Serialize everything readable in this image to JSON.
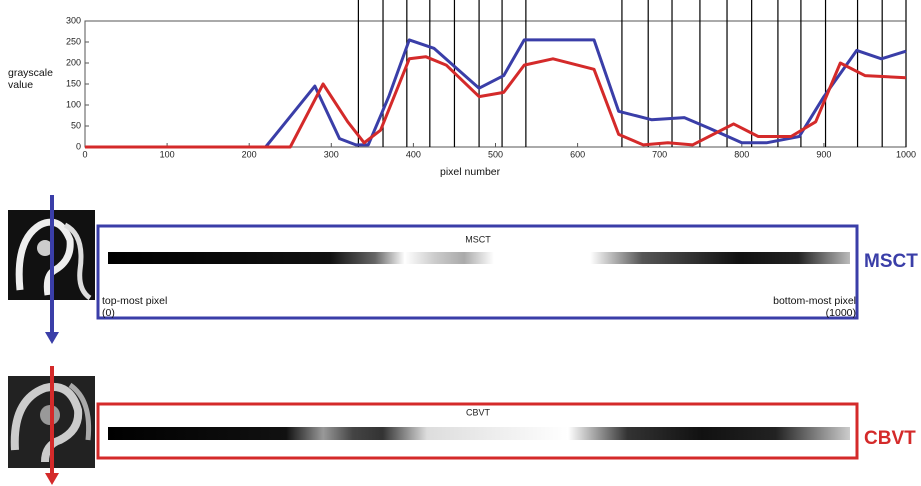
{
  "chart_data": {
    "type": "line",
    "xlabel": "pixel number",
    "ylabel": "grayscale value",
    "xlim": [
      0,
      1000
    ],
    "ylim": [
      0,
      300
    ],
    "xticks": [
      0,
      100,
      200,
      300,
      400,
      500,
      600,
      700,
      800,
      900,
      1000
    ],
    "yticks": [
      0,
      50,
      100,
      150,
      200,
      250,
      300
    ],
    "vertical_lines": [
      333,
      363,
      392,
      420,
      450,
      480,
      508,
      537,
      654,
      686,
      715,
      749,
      782,
      812,
      844,
      872,
      902,
      941,
      971,
      1000
    ],
    "series": [
      {
        "name": "MSCT",
        "color": "#3a3ea8",
        "x": [
          0,
          220,
          280,
          310,
          330,
          345,
          370,
          395,
          425,
          480,
          510,
          535,
          620,
          650,
          690,
          730,
          760,
          800,
          830,
          870,
          900,
          940,
          970,
          1000
        ],
        "values": [
          0,
          0,
          145,
          20,
          5,
          5,
          120,
          255,
          235,
          140,
          170,
          255,
          255,
          85,
          65,
          70,
          45,
          10,
          10,
          25,
          120,
          230,
          210,
          228
        ]
      },
      {
        "name": "CBVT",
        "color": "#d42a2a",
        "x": [
          0,
          250,
          290,
          320,
          340,
          360,
          395,
          415,
          440,
          480,
          510,
          535,
          570,
          620,
          650,
          680,
          710,
          740,
          790,
          820,
          860,
          890,
          920,
          950,
          1000
        ],
        "values": [
          0,
          0,
          150,
          60,
          10,
          40,
          210,
          215,
          195,
          120,
          130,
          195,
          210,
          185,
          30,
          5,
          10,
          5,
          55,
          25,
          25,
          60,
          200,
          170,
          165
        ]
      }
    ]
  },
  "panels": [
    {
      "strip_title": "MSCT",
      "label": "MSCT",
      "color": "#3a3ea8",
      "start_note": "top-most pixel (0)",
      "end_note": "bottom-most pixel (1000)"
    },
    {
      "strip_title": "CBVT",
      "label": "CBVT",
      "color": "#d42a2a"
    }
  ]
}
